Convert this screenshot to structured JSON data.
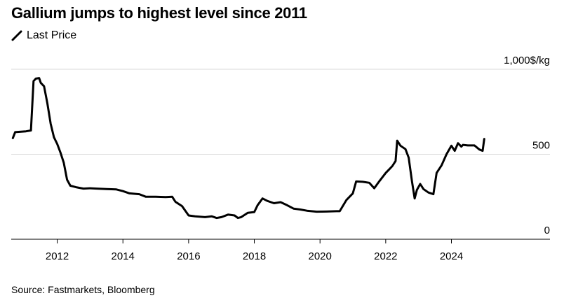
{
  "header": {
    "title": "Gallium jumps to highest level since 2011",
    "legend_label": "Last Price"
  },
  "footer": {
    "source": "Source: Fastmarkets, Bloomberg"
  },
  "colors": {
    "line": "#000000",
    "grid": "#d9d9d9",
    "axis": "#000000"
  },
  "chart_data": {
    "type": "line",
    "title": "Gallium jumps to highest level since 2011",
    "xlabel": "",
    "ylabel": "",
    "unit_label": "1,000$/kg",
    "xlim": [
      2010.6,
      2027.0
    ],
    "ylim": [
      0,
      1000
    ],
    "y_ticks": [
      {
        "value": 1000,
        "label": "1,000$/kg"
      },
      {
        "value": 500,
        "label": "500"
      },
      {
        "value": 0,
        "label": "0"
      }
    ],
    "x_ticks": [
      {
        "value": 2012,
        "label": "2012"
      },
      {
        "value": 2014,
        "label": "2014"
      },
      {
        "value": 2016,
        "label": "2016"
      },
      {
        "value": 2018,
        "label": "2018"
      },
      {
        "value": 2020,
        "label": "2020"
      },
      {
        "value": 2022,
        "label": "2022"
      },
      {
        "value": 2024,
        "label": "2024"
      }
    ],
    "grid": true,
    "legend": "top-left",
    "series": [
      {
        "name": "Last Price",
        "points": [
          [
            2010.65,
            595
          ],
          [
            2010.72,
            630
          ],
          [
            2010.9,
            633
          ],
          [
            2011.05,
            635
          ],
          [
            2011.2,
            640
          ],
          [
            2011.28,
            930
          ],
          [
            2011.35,
            945
          ],
          [
            2011.45,
            948
          ],
          [
            2011.5,
            920
          ],
          [
            2011.6,
            900
          ],
          [
            2011.7,
            800
          ],
          [
            2011.8,
            680
          ],
          [
            2011.9,
            600
          ],
          [
            2012.0,
            560
          ],
          [
            2012.1,
            510
          ],
          [
            2012.2,
            450
          ],
          [
            2012.3,
            350
          ],
          [
            2012.4,
            315
          ],
          [
            2012.5,
            310
          ],
          [
            2012.6,
            305
          ],
          [
            2012.8,
            298
          ],
          [
            2013.0,
            300
          ],
          [
            2013.2,
            298
          ],
          [
            2013.5,
            295
          ],
          [
            2013.8,
            293
          ],
          [
            2014.0,
            283
          ],
          [
            2014.2,
            270
          ],
          [
            2014.5,
            265
          ],
          [
            2014.7,
            250
          ],
          [
            2015.0,
            250
          ],
          [
            2015.3,
            248
          ],
          [
            2015.5,
            250
          ],
          [
            2015.6,
            220
          ],
          [
            2015.8,
            195
          ],
          [
            2016.0,
            140
          ],
          [
            2016.2,
            135
          ],
          [
            2016.5,
            130
          ],
          [
            2016.7,
            135
          ],
          [
            2016.85,
            125
          ],
          [
            2017.0,
            130
          ],
          [
            2017.2,
            145
          ],
          [
            2017.4,
            140
          ],
          [
            2017.5,
            125
          ],
          [
            2017.6,
            130
          ],
          [
            2017.8,
            155
          ],
          [
            2018.0,
            160
          ],
          [
            2018.1,
            200
          ],
          [
            2018.25,
            240
          ],
          [
            2018.4,
            225
          ],
          [
            2018.6,
            212
          ],
          [
            2018.8,
            218
          ],
          [
            2019.0,
            200
          ],
          [
            2019.2,
            180
          ],
          [
            2019.4,
            175
          ],
          [
            2019.6,
            168
          ],
          [
            2019.9,
            162
          ],
          [
            2020.2,
            163
          ],
          [
            2020.5,
            165
          ],
          [
            2020.6,
            165
          ],
          [
            2020.8,
            230
          ],
          [
            2021.0,
            270
          ],
          [
            2021.1,
            340
          ],
          [
            2021.3,
            338
          ],
          [
            2021.5,
            332
          ],
          [
            2021.65,
            300
          ],
          [
            2021.8,
            340
          ],
          [
            2022.0,
            390
          ],
          [
            2022.1,
            410
          ],
          [
            2022.2,
            430
          ],
          [
            2022.3,
            460
          ],
          [
            2022.35,
            580
          ],
          [
            2022.45,
            550
          ],
          [
            2022.6,
            530
          ],
          [
            2022.7,
            480
          ],
          [
            2022.8,
            340
          ],
          [
            2022.88,
            240
          ],
          [
            2022.95,
            290
          ],
          [
            2023.05,
            325
          ],
          [
            2023.15,
            295
          ],
          [
            2023.3,
            275
          ],
          [
            2023.45,
            265
          ],
          [
            2023.55,
            390
          ],
          [
            2023.7,
            435
          ],
          [
            2023.85,
            500
          ],
          [
            2024.0,
            550
          ],
          [
            2024.1,
            520
          ],
          [
            2024.2,
            565
          ],
          [
            2024.3,
            545
          ],
          [
            2024.35,
            555
          ],
          [
            2024.5,
            552
          ],
          [
            2024.7,
            552
          ],
          [
            2024.85,
            528
          ],
          [
            2024.95,
            520
          ],
          [
            2025.0,
            590
          ]
        ]
      }
    ]
  }
}
